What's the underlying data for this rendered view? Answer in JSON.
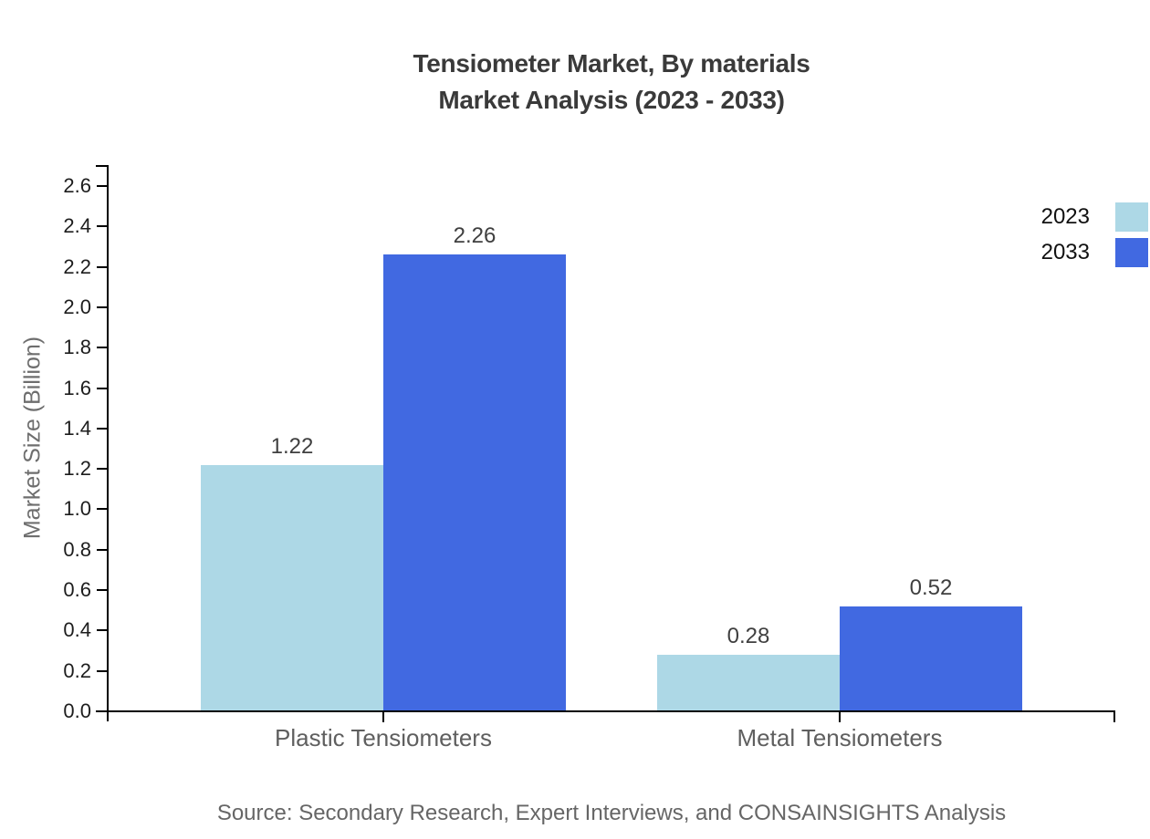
{
  "title": {
    "line1": "Tensiometer Market, By materials",
    "line2": "Market Analysis (2023 - 2033)"
  },
  "source": "Source: Secondary Research, Expert Interviews, and CONSAINSIGHTS Analysis",
  "chart_data": {
    "type": "bar",
    "title": "Tensiometer Market, By materials Market Analysis (2023 - 2033)",
    "categories": [
      "Plastic Tensiometers",
      "Metal Tensiometers"
    ],
    "series": [
      {
        "name": "2023",
        "color": "#ADD8E6",
        "values": [
          1.22,
          0.28
        ]
      },
      {
        "name": "2033",
        "color": "#4169E1",
        "values": [
          2.26,
          0.52
        ]
      }
    ],
    "xlabel": "",
    "ylabel": "Market Size (Billion)",
    "ylim": [
      0.0,
      2.6
    ],
    "ytick_step": 0.2,
    "yticks": [
      "0.0",
      "0.2",
      "0.4",
      "0.6",
      "0.8",
      "1.0",
      "1.2",
      "1.4",
      "1.6",
      "1.8",
      "2.0",
      "2.2",
      "2.4",
      "2.6"
    ],
    "grid": false,
    "legend_position": "top-right",
    "value_labels": [
      "1.22",
      "2.26",
      "0.28",
      "0.52"
    ],
    "axis_color": "#000000",
    "background_color": "#ffffff"
  }
}
